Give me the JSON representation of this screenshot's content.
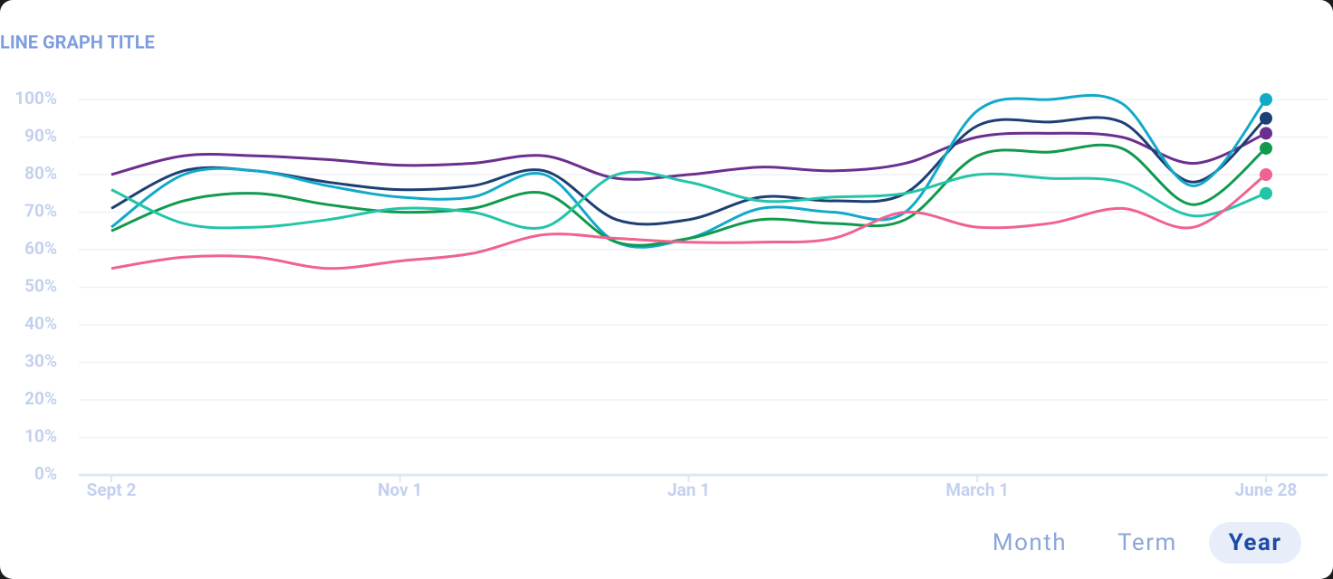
{
  "chart_data": {
    "type": "line",
    "title": "LINE GRAPH TITLE",
    "categories": [
      "Sept 2",
      null,
      null,
      null,
      "Nov 1",
      null,
      null,
      null,
      "Jan 1",
      null,
      null,
      null,
      "March 1",
      null,
      null,
      null,
      "June 28"
    ],
    "series": [
      {
        "color": "#6b2f8f",
        "values": [
          80,
          85,
          85,
          84,
          82.5,
          83,
          85,
          79,
          80,
          82,
          81,
          83,
          90,
          91,
          90,
          83,
          91
        ]
      },
      {
        "color": "#1e3f73",
        "values": [
          71,
          81,
          81,
          78,
          76,
          77,
          81,
          68,
          68,
          74,
          73,
          75,
          93,
          94,
          94,
          78,
          95
        ]
      },
      {
        "color": "#12a9c9",
        "values": [
          66,
          80,
          81,
          77,
          74,
          74,
          80,
          62,
          63,
          71,
          70,
          70,
          97,
          100,
          99,
          77,
          100
        ]
      },
      {
        "color": "#109a4e",
        "values": [
          65,
          73,
          75,
          72,
          70,
          71,
          75,
          62,
          63,
          68,
          67,
          68,
          85,
          86,
          87,
          72,
          87
        ]
      },
      {
        "color": "#23c4a8",
        "values": [
          76,
          67,
          66,
          68,
          71,
          70,
          66,
          80,
          78,
          73,
          74,
          75,
          80,
          79,
          78,
          69,
          75
        ]
      },
      {
        "color": "#f06292",
        "values": [
          55,
          58,
          58,
          55,
          57,
          59,
          64,
          63,
          62,
          62,
          63,
          70,
          66,
          67,
          71,
          66,
          80
        ]
      }
    ],
    "ylim": [
      0,
      100
    ],
    "yticks": [
      {
        "value": 0,
        "label": "0%"
      },
      {
        "value": 10,
        "label": "10%"
      },
      {
        "value": 20,
        "label": "20%"
      },
      {
        "value": 30,
        "label": "30%"
      },
      {
        "value": 40,
        "label": "40%"
      },
      {
        "value": 50,
        "label": "50%"
      },
      {
        "value": 60,
        "label": "60%"
      },
      {
        "value": 70,
        "label": "70%"
      },
      {
        "value": 80,
        "label": "80%"
      },
      {
        "value": 90,
        "label": "90%"
      },
      {
        "value": 100,
        "label": "100%"
      }
    ],
    "grid": true,
    "smooth": true
  },
  "range_selector": {
    "options": [
      "Month",
      "Term",
      "Year"
    ],
    "selected": 2
  }
}
